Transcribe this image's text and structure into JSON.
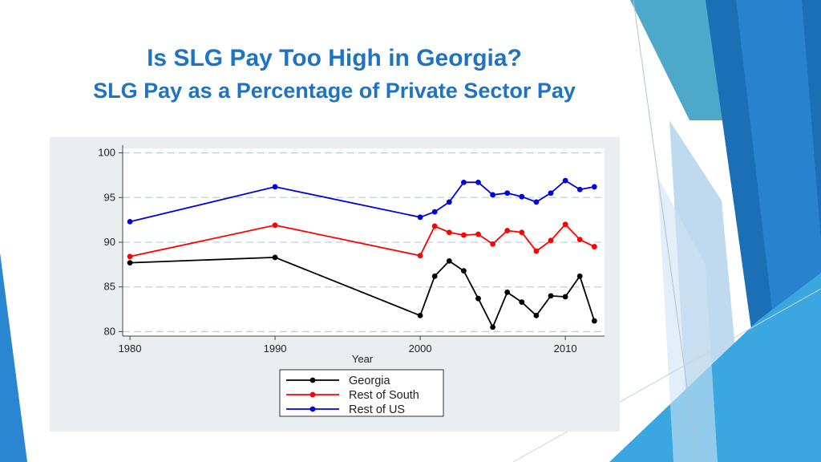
{
  "slide": {
    "title": "Is SLG Pay Too High in Georgia?",
    "subtitle": "SLG Pay as a Percentage of Private Sector Pay"
  },
  "colors": {
    "title": "#1f73c2",
    "panel": "#eaeef1",
    "plot": "#ffffff",
    "grid": "#b8d2dc",
    "accent_blues": [
      "#1b6fb5",
      "#2a86d1",
      "#3aa7e0",
      "#a9cdea"
    ]
  },
  "chart_data": {
    "type": "line",
    "title": "",
    "xlabel": "Year",
    "ylabel": "",
    "xlim": [
      1979.5,
      2012.7
    ],
    "ylim": [
      79.5,
      100.5
    ],
    "xticks": [
      1980,
      1990,
      2000,
      2010
    ],
    "yticks": [
      80,
      85,
      90,
      95,
      100
    ],
    "grid": true,
    "legend_position": "bottom",
    "series": [
      {
        "name": "Georgia",
        "color": "#000000",
        "x": [
          1980,
          1990,
          2000,
          2001,
          2002,
          2003,
          2004,
          2005,
          2006,
          2007,
          2008,
          2009,
          2010,
          2011,
          2012
        ],
        "y": [
          87.7,
          88.3,
          81.8,
          86.2,
          87.9,
          86.8,
          83.7,
          80.5,
          84.4,
          83.3,
          81.8,
          84.0,
          83.9,
          86.2,
          81.2
        ]
      },
      {
        "name": "Rest of South",
        "color": "#ff0000",
        "x": [
          1980,
          1990,
          2000,
          2001,
          2002,
          2003,
          2004,
          2005,
          2006,
          2007,
          2008,
          2009,
          2010,
          2011,
          2012
        ],
        "y": [
          88.4,
          91.9,
          88.5,
          91.8,
          91.1,
          90.8,
          90.9,
          89.8,
          91.3,
          91.1,
          89.0,
          90.2,
          92.0,
          90.3,
          89.5
        ]
      },
      {
        "name": "Rest of US",
        "color": "#0000dd",
        "x": [
          1980,
          1990,
          2000,
          2001,
          2002,
          2003,
          2004,
          2005,
          2006,
          2007,
          2008,
          2009,
          2010,
          2011,
          2012
        ],
        "y": [
          92.3,
          96.2,
          92.8,
          93.4,
          94.5,
          96.7,
          96.7,
          95.3,
          95.5,
          95.1,
          94.5,
          95.5,
          96.9,
          95.9,
          96.2
        ]
      }
    ]
  }
}
